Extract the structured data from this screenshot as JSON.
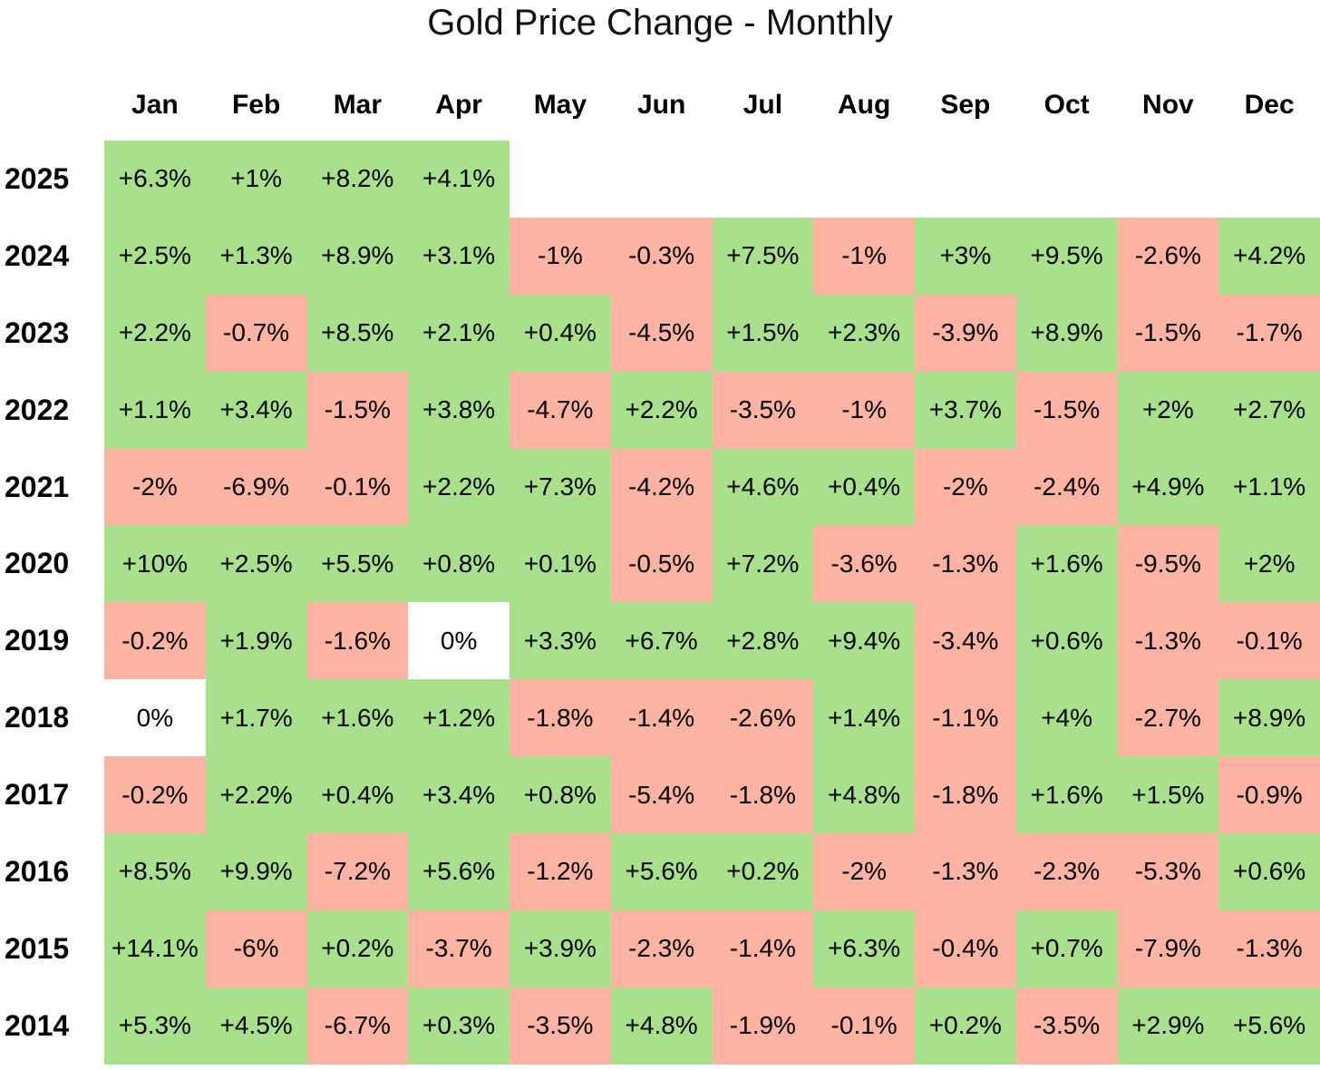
{
  "title": "Gold Price Change - Monthly",
  "colors": {
    "positive": "#a8e08c",
    "negative": "#ffb3a3",
    "zero": "#ffffff",
    "empty": "#ffffff",
    "text": "#000000"
  },
  "chart_data": {
    "type": "heatmap",
    "title": "Gold Price Change - Monthly",
    "legend": "none",
    "color_coding": "green = positive monthly change, salmon = negative monthly change, white = 0% or no data",
    "columns": [
      "Jan",
      "Feb",
      "Mar",
      "Apr",
      "May",
      "Jun",
      "Jul",
      "Aug",
      "Sep",
      "Oct",
      "Nov",
      "Dec"
    ],
    "rows": [
      {
        "year": "2025",
        "values": [
          "+6.3%",
          "+1%",
          "+8.2%",
          "+4.1%",
          null,
          null,
          null,
          null,
          null,
          null,
          null,
          null
        ]
      },
      {
        "year": "2024",
        "values": [
          "+2.5%",
          "+1.3%",
          "+8.9%",
          "+3.1%",
          "-1%",
          "-0.3%",
          "+7.5%",
          "-1%",
          "+3%",
          "+9.5%",
          "-2.6%",
          "+4.2%"
        ]
      },
      {
        "year": "2023",
        "values": [
          "+2.2%",
          "-0.7%",
          "+8.5%",
          "+2.1%",
          "+0.4%",
          "-4.5%",
          "+1.5%",
          "+2.3%",
          "-3.9%",
          "+8.9%",
          "-1.5%",
          "-1.7%"
        ]
      },
      {
        "year": "2022",
        "values": [
          "+1.1%",
          "+3.4%",
          "-1.5%",
          "+3.8%",
          "-4.7%",
          "+2.2%",
          "-3.5%",
          "-1%",
          "+3.7%",
          "-1.5%",
          "+2%",
          "+2.7%"
        ]
      },
      {
        "year": "2021",
        "values": [
          "-2%",
          "-6.9%",
          "-0.1%",
          "+2.2%",
          "+7.3%",
          "-4.2%",
          "+4.6%",
          "+0.4%",
          "-2%",
          "-2.4%",
          "+4.9%",
          "+1.1%"
        ]
      },
      {
        "year": "2020",
        "values": [
          "+10%",
          "+2.5%",
          "+5.5%",
          "+0.8%",
          "+0.1%",
          "-0.5%",
          "+7.2%",
          "-3.6%",
          "-1.3%",
          "+1.6%",
          "-9.5%",
          "+2%"
        ]
      },
      {
        "year": "2019",
        "values": [
          "-0.2%",
          "+1.9%",
          "-1.6%",
          "0%",
          "+3.3%",
          "+6.7%",
          "+2.8%",
          "+9.4%",
          "-3.4%",
          "+0.6%",
          "-1.3%",
          "-0.1%"
        ]
      },
      {
        "year": "2018",
        "values": [
          "0%",
          "+1.7%",
          "+1.6%",
          "+1.2%",
          "-1.8%",
          "-1.4%",
          "-2.6%",
          "+1.4%",
          "-1.1%",
          "+4%",
          "-2.7%",
          "+8.9%"
        ]
      },
      {
        "year": "2017",
        "values": [
          "-0.2%",
          "+2.2%",
          "+0.4%",
          "+3.4%",
          "+0.8%",
          "-5.4%",
          "-1.8%",
          "+4.8%",
          "-1.8%",
          "+1.6%",
          "+1.5%",
          "-0.9%"
        ]
      },
      {
        "year": "2016",
        "values": [
          "+8.5%",
          "+9.9%",
          "-7.2%",
          "+5.6%",
          "-1.2%",
          "+5.6%",
          "+0.2%",
          "-2%",
          "-1.3%",
          "-2.3%",
          "-5.3%",
          "+0.6%"
        ]
      },
      {
        "year": "2015",
        "values": [
          "+14.1%",
          "-6%",
          "+0.2%",
          "-3.7%",
          "+3.9%",
          "-2.3%",
          "-1.4%",
          "+6.3%",
          "-0.4%",
          "+0.7%",
          "-7.9%",
          "-1.3%"
        ]
      },
      {
        "year": "2014",
        "values": [
          "+5.3%",
          "+4.5%",
          "-6.7%",
          "+0.3%",
          "-3.5%",
          "+4.8%",
          "-1.9%",
          "-0.1%",
          "+0.2%",
          "-3.5%",
          "+2.9%",
          "+5.6%"
        ]
      }
    ]
  }
}
